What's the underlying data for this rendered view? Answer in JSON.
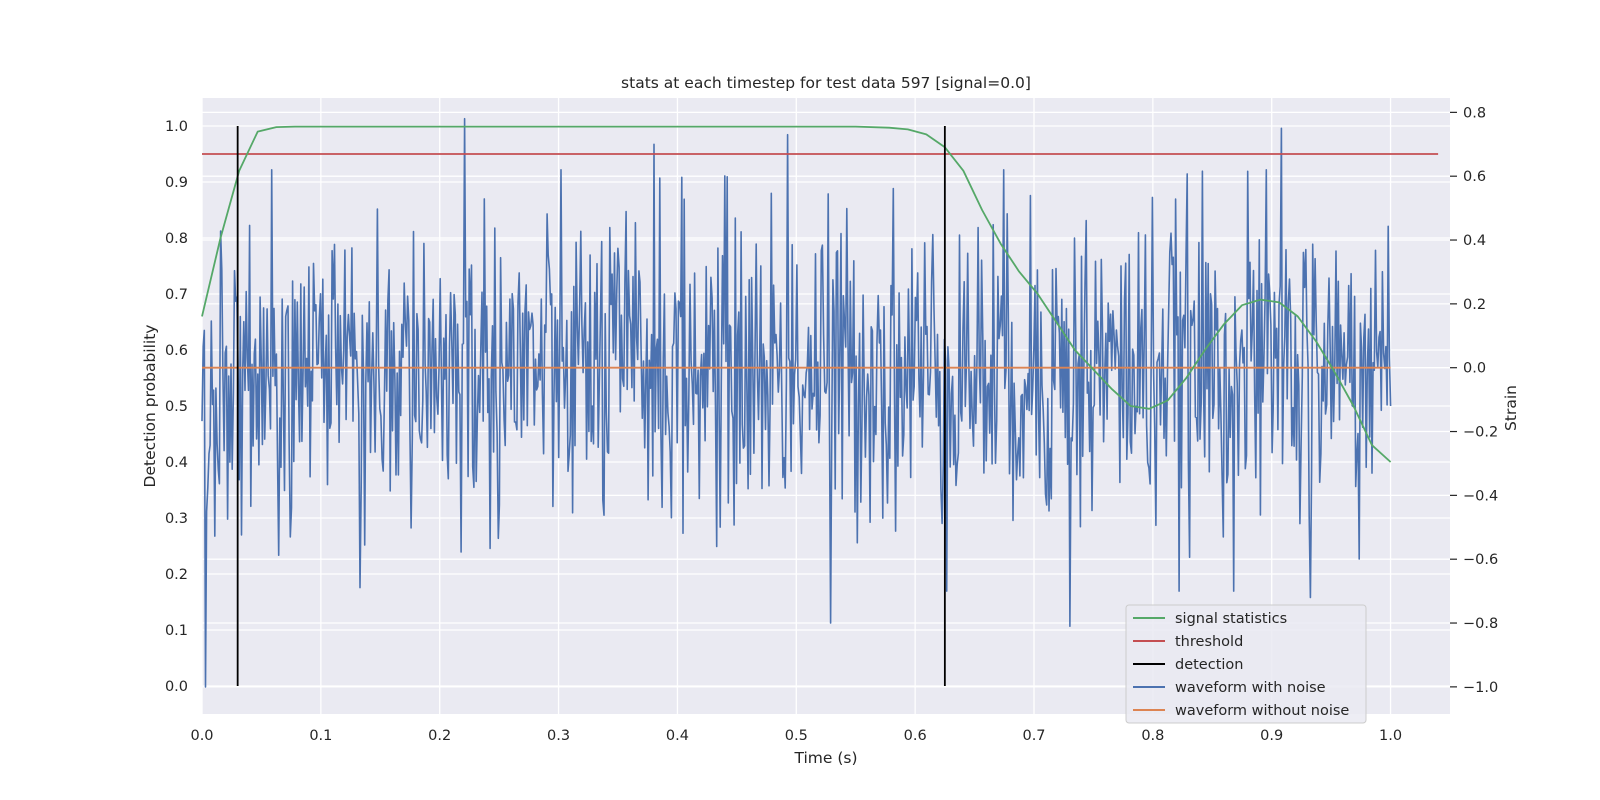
{
  "chart_data": {
    "type": "line",
    "title": "stats at each timestep for test data 597 [signal=0.0]",
    "xlabel": "Time (s)",
    "ylabel_left": "Detection probability",
    "ylabel_right": "Strain",
    "xlim": [
      0.0,
      1.05
    ],
    "ylim_left": [
      -0.05,
      1.05
    ],
    "ylim_right": [
      -1.085,
      0.845
    ],
    "x_ticks": [
      "0.0",
      "0.1",
      "0.2",
      "0.3",
      "0.4",
      "0.5",
      "0.6",
      "0.7",
      "0.8",
      "0.9",
      "1.0"
    ],
    "x_tick_values": [
      0.0,
      0.1,
      0.2,
      0.3,
      0.4,
      0.5,
      0.6,
      0.7,
      0.8,
      0.9,
      1.0
    ],
    "y_left_ticks": [
      "0.0",
      "0.1",
      "0.2",
      "0.3",
      "0.4",
      "0.5",
      "0.6",
      "0.7",
      "0.8",
      "0.9",
      "1.0"
    ],
    "y_left_tick_values": [
      0.0,
      0.1,
      0.2,
      0.3,
      0.4,
      0.5,
      0.6,
      0.7,
      0.8,
      0.9,
      1.0
    ],
    "y_right_ticks": [
      "0.8",
      "0.6",
      "0.4",
      "0.2",
      "0.0",
      "−0.2",
      "−0.4",
      "−0.6",
      "−0.8",
      "−1.0"
    ],
    "y_right_tick_values": [
      0.8,
      0.6,
      0.4,
      0.2,
      0.0,
      -0.2,
      -0.4,
      -0.6,
      -0.8,
      -1.0
    ],
    "grid": true,
    "background_color": "#eaeaf2",
    "legend_position": "lower-right",
    "series": [
      {
        "name": "signal statistics",
        "axis": "left",
        "color": "#55a868",
        "x": [
          0.0,
          0.0156,
          0.0313,
          0.0469,
          0.0625,
          0.0781,
          0.1,
          0.2,
          0.3,
          0.4,
          0.5,
          0.55,
          0.5781,
          0.5938,
          0.6094,
          0.625,
          0.6406,
          0.6563,
          0.6719,
          0.6875,
          0.7031,
          0.7188,
          0.7344,
          0.75,
          0.7656,
          0.7813,
          0.7969,
          0.8125,
          0.8281,
          0.8438,
          0.8594,
          0.875,
          0.8906,
          0.9063,
          0.9219,
          0.9375,
          0.9531,
          0.9688,
          0.9844,
          1.0
        ],
        "y": [
          0.66,
          0.8,
          0.92,
          0.99,
          0.998,
          0.999,
          0.999,
          0.999,
          0.999,
          0.999,
          0.999,
          0.999,
          0.997,
          0.994,
          0.985,
          0.962,
          0.92,
          0.85,
          0.79,
          0.74,
          0.7,
          0.65,
          0.6,
          0.565,
          0.53,
          0.5,
          0.495,
          0.51,
          0.55,
          0.6,
          0.645,
          0.68,
          0.69,
          0.685,
          0.66,
          0.615,
          0.56,
          0.5,
          0.43,
          0.4
        ]
      },
      {
        "name": "threshold",
        "axis": "left",
        "color": "#c44e52",
        "x": [
          0.0,
          1.04
        ],
        "y": [
          0.95,
          0.95
        ]
      },
      {
        "name": "detection",
        "axis": "left",
        "color": "#000000",
        "x_positions": [
          0.03,
          0.625
        ],
        "y": [
          0.0,
          1.0
        ]
      },
      {
        "name": "waveform with noise",
        "axis": "right",
        "color": "#4c72b0",
        "generated": true,
        "points": 1024,
        "x_range": [
          0.0,
          1.0
        ],
        "std": 0.25,
        "extremes": [
          {
            "x": 0.003,
            "y": -1.0
          },
          {
            "x": 0.2205,
            "y": 0.78
          },
          {
            "x": 0.908,
            "y": 0.75
          },
          {
            "x": 0.493,
            "y": 0.73
          },
          {
            "x": 0.38,
            "y": 0.7
          },
          {
            "x": 0.529,
            "y": -0.8
          },
          {
            "x": 0.73,
            "y": -0.81
          },
          {
            "x": 0.933,
            "y": -0.72
          }
        ]
      },
      {
        "name": "waveform without noise",
        "axis": "right",
        "color": "#dd8452",
        "x": [
          0.0,
          1.0
        ],
        "y": [
          0.0,
          0.0
        ]
      }
    ]
  }
}
